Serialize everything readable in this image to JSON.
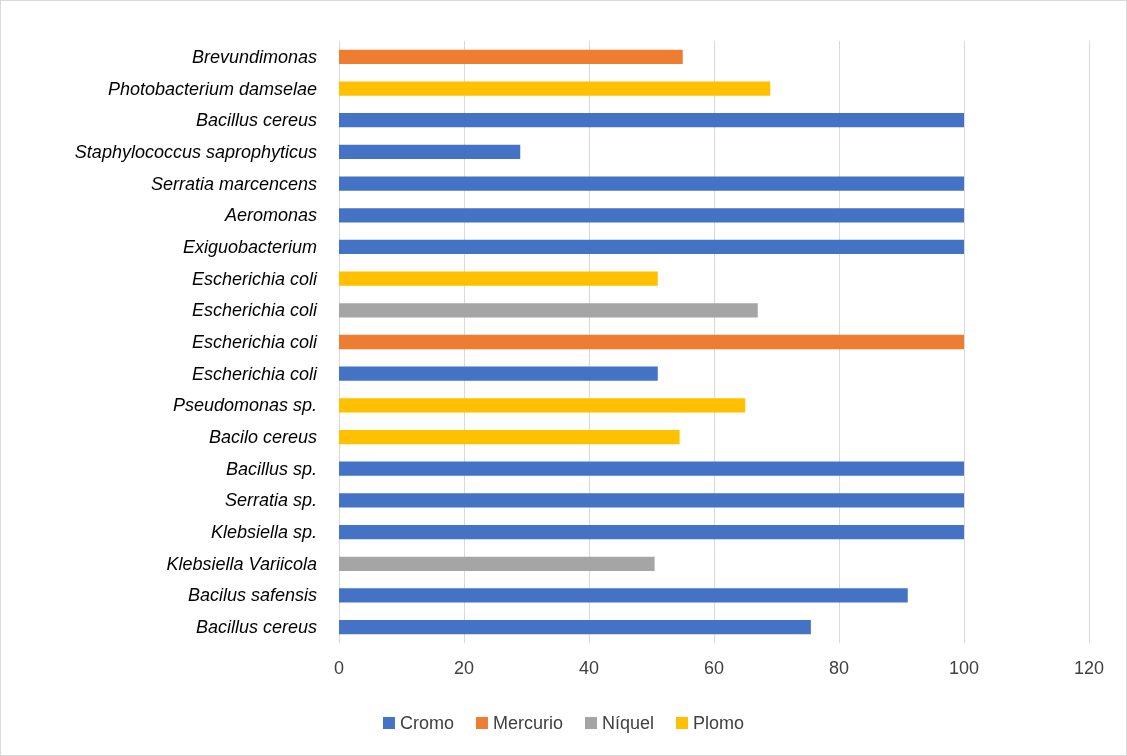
{
  "chart_data": {
    "type": "bar",
    "orientation": "horizontal",
    "stacked": true,
    "categories": [
      "Brevundimonas",
      "Photobacterium damselae",
      "Bacillus cereus",
      "Staphylococcus saprophyticus",
      "Serratia marcencens",
      "Aeromonas",
      "Exiguobacterium",
      "Escherichia coli",
      "Escherichia coli",
      "Escherichia coli",
      "Escherichia coli",
      "Pseudomonas sp.",
      "Bacilo cereus",
      "Bacillus sp.",
      "Serratia sp.",
      "Klebsiella sp.",
      "Klebsiella Variicola",
      "Bacilus safensis",
      "Bacillus cereus"
    ],
    "series": [
      {
        "name": "Cromo",
        "color": "#4472c4",
        "values": [
          null,
          null,
          100,
          29,
          100,
          100,
          100,
          null,
          null,
          null,
          51,
          null,
          null,
          100,
          100,
          100,
          null,
          91,
          75.5
        ]
      },
      {
        "name": "Mercurio",
        "color": "#ed7d31",
        "values": [
          55,
          null,
          null,
          null,
          null,
          null,
          null,
          null,
          null,
          100,
          null,
          null,
          null,
          null,
          null,
          null,
          null,
          null,
          null
        ]
      },
      {
        "name": "Níquel",
        "color": "#a5a5a5",
        "values": [
          null,
          null,
          null,
          null,
          null,
          null,
          null,
          null,
          67,
          null,
          null,
          null,
          null,
          null,
          null,
          null,
          50.5,
          null,
          null
        ]
      },
      {
        "name": "Plomo",
        "color": "#ffc000",
        "values": [
          null,
          69,
          null,
          null,
          null,
          null,
          null,
          51,
          null,
          null,
          null,
          65,
          54.5,
          null,
          null,
          null,
          null,
          null,
          null
        ]
      }
    ],
    "xlim": [
      0,
      120
    ],
    "xticks": [
      0,
      20,
      40,
      60,
      80,
      100,
      120
    ],
    "grid": "x",
    "legend": "bottom"
  }
}
